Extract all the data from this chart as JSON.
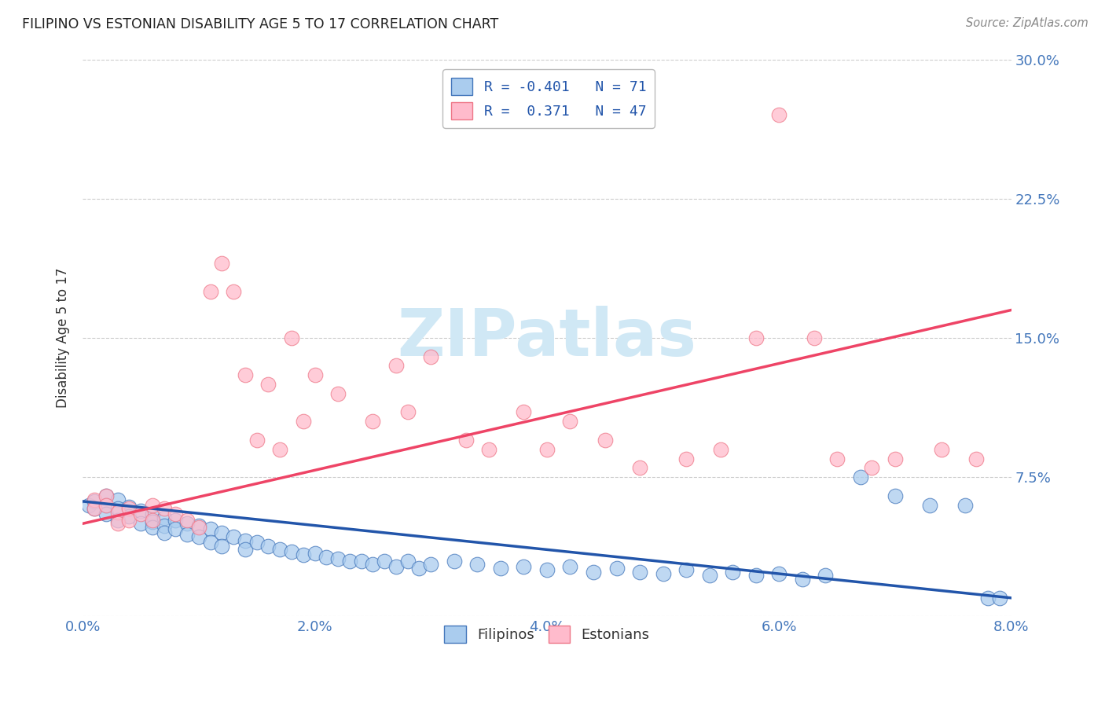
{
  "title": "FILIPINO VS ESTONIAN DISABILITY AGE 5 TO 17 CORRELATION CHART",
  "source": "Source: ZipAtlas.com",
  "xlim": [
    0.0,
    0.08
  ],
  "ylim": [
    0.0,
    0.3
  ],
  "ylabel": "Disability Age 5 to 17",
  "x_tick_vals": [
    0.0,
    0.02,
    0.04,
    0.06,
    0.08
  ],
  "x_tick_labels": [
    "0.0%",
    "2.0%",
    "4.0%",
    "6.0%",
    "8.0%"
  ],
  "y_tick_vals": [
    0.0,
    0.075,
    0.15,
    0.225,
    0.3
  ],
  "y_tick_labels": [
    "",
    "7.5%",
    "15.0%",
    "22.5%",
    "30.0%"
  ],
  "blue_face": "#AACCEE",
  "blue_edge": "#4477BB",
  "blue_line": "#2255AA",
  "pink_face": "#FFBBCC",
  "pink_edge": "#EE7788",
  "pink_line": "#EE4466",
  "grid_color": "#CCCCCC",
  "watermark": "ZIPatlas",
  "watermark_color": "#D0E8F5",
  "title_color": "#222222",
  "source_color": "#888888",
  "tick_color": "#4477BB",
  "ylabel_color": "#333333",
  "legend_text_color": "#2255AA",
  "legend_r1": "R = -0.401",
  "legend_n1": "N = 71",
  "legend_r2": "R =  0.371",
  "legend_n2": "N = 47",
  "filipinos_x": [
    0.0005,
    0.001,
    0.001,
    0.002,
    0.002,
    0.002,
    0.003,
    0.003,
    0.003,
    0.004,
    0.004,
    0.005,
    0.005,
    0.006,
    0.006,
    0.006,
    0.007,
    0.007,
    0.007,
    0.008,
    0.008,
    0.009,
    0.009,
    0.01,
    0.01,
    0.011,
    0.011,
    0.012,
    0.012,
    0.013,
    0.014,
    0.014,
    0.015,
    0.016,
    0.017,
    0.018,
    0.019,
    0.02,
    0.021,
    0.022,
    0.023,
    0.024,
    0.025,
    0.026,
    0.027,
    0.028,
    0.029,
    0.03,
    0.032,
    0.034,
    0.036,
    0.038,
    0.04,
    0.042,
    0.044,
    0.046,
    0.048,
    0.05,
    0.052,
    0.054,
    0.056,
    0.058,
    0.06,
    0.062,
    0.064,
    0.067,
    0.07,
    0.073,
    0.076,
    0.078,
    0.079
  ],
  "filipinos_y": [
    0.06,
    0.062,
    0.058,
    0.065,
    0.06,
    0.055,
    0.063,
    0.058,
    0.052,
    0.059,
    0.054,
    0.057,
    0.05,
    0.055,
    0.051,
    0.048,
    0.053,
    0.049,
    0.045,
    0.052,
    0.047,
    0.05,
    0.044,
    0.049,
    0.043,
    0.047,
    0.04,
    0.045,
    0.038,
    0.043,
    0.041,
    0.036,
    0.04,
    0.038,
    0.036,
    0.035,
    0.033,
    0.034,
    0.032,
    0.031,
    0.03,
    0.03,
    0.028,
    0.03,
    0.027,
    0.03,
    0.026,
    0.028,
    0.03,
    0.028,
    0.026,
    0.027,
    0.025,
    0.027,
    0.024,
    0.026,
    0.024,
    0.023,
    0.025,
    0.022,
    0.024,
    0.022,
    0.023,
    0.02,
    0.022,
    0.075,
    0.065,
    0.06,
    0.06,
    0.01,
    0.01
  ],
  "estonians_x": [
    0.001,
    0.001,
    0.002,
    0.002,
    0.003,
    0.003,
    0.004,
    0.004,
    0.005,
    0.006,
    0.006,
    0.007,
    0.008,
    0.009,
    0.01,
    0.011,
    0.012,
    0.013,
    0.014,
    0.015,
    0.016,
    0.017,
    0.018,
    0.019,
    0.02,
    0.022,
    0.025,
    0.027,
    0.028,
    0.03,
    0.033,
    0.035,
    0.038,
    0.04,
    0.042,
    0.045,
    0.048,
    0.052,
    0.055,
    0.058,
    0.06,
    0.063,
    0.065,
    0.068,
    0.07,
    0.074,
    0.077
  ],
  "estonians_y": [
    0.063,
    0.058,
    0.065,
    0.06,
    0.056,
    0.05,
    0.058,
    0.052,
    0.055,
    0.06,
    0.052,
    0.058,
    0.055,
    0.052,
    0.048,
    0.175,
    0.19,
    0.175,
    0.13,
    0.095,
    0.125,
    0.09,
    0.15,
    0.105,
    0.13,
    0.12,
    0.105,
    0.135,
    0.11,
    0.14,
    0.095,
    0.09,
    0.11,
    0.09,
    0.105,
    0.095,
    0.08,
    0.085,
    0.09,
    0.15,
    0.27,
    0.15,
    0.085,
    0.08,
    0.085,
    0.09,
    0.085
  ]
}
